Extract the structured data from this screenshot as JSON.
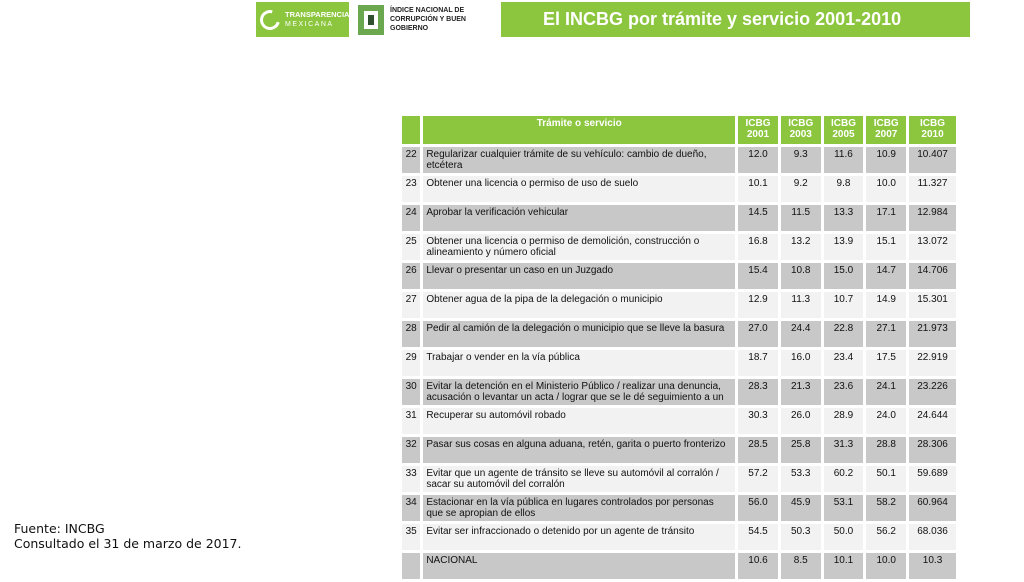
{
  "header": {
    "logo_tm": {
      "line1": "TRANSPARENCIA",
      "line2": "MEXICANA"
    },
    "logo_inc": {
      "line1": "ÍNDICE NACIONAL DE",
      "line2": "CORRUPCIÓN Y BUEN GOBIERNO"
    },
    "title": "El INCBG por trámite y servicio 2001-2010",
    "brand_color": "#8cc63f"
  },
  "table": {
    "columns": [
      "Trámite o servicio",
      "ICBG\n2001",
      "ICBG\n2003",
      "ICBG\n2005",
      "ICBG\n2007",
      "ICBG\n2010"
    ],
    "rows": [
      {
        "n": "22",
        "t": "Regularizar cualquier trámite de su vehículo: cambio de dueño, etcétera",
        "v": [
          "12.0",
          "9.3",
          "11.6",
          "10.9",
          "10.407"
        ]
      },
      {
        "n": "23",
        "t": "Obtener una licencia o permiso de uso de suelo",
        "v": [
          "10.1",
          "9.2",
          "9.8",
          "10.0",
          "11.327"
        ]
      },
      {
        "n": "24",
        "t": "Aprobar la verificación vehicular",
        "v": [
          "14.5",
          "11.5",
          "13.3",
          "17.1",
          "12.984"
        ]
      },
      {
        "n": "25",
        "t": "Obtener una licencia o permiso de demolición, construcción o alineamiento y número oficial",
        "v": [
          "16.8",
          "13.2",
          "13.9",
          "15.1",
          "13.072"
        ]
      },
      {
        "n": "26",
        "t": "Llevar o presentar un caso en un Juzgado",
        "v": [
          "15.4",
          "10.8",
          "15.0",
          "14.7",
          "14.706"
        ]
      },
      {
        "n": "27",
        "t": "Obtener agua de la pipa de la delegación o municipio",
        "v": [
          "12.9",
          "11.3",
          "10.7",
          "14.9",
          "15.301"
        ]
      },
      {
        "n": "28",
        "t": "Pedir al camión de la delegación o municipio que se lleve la basura",
        "v": [
          "27.0",
          "24.4",
          "22.8",
          "27.1",
          "21.973"
        ]
      },
      {
        "n": "29",
        "t": "Trabajar o vender en la vía pública",
        "v": [
          "18.7",
          "16.0",
          "23.4",
          "17.5",
          "22.919"
        ]
      },
      {
        "n": "30",
        "t": "Evitar la detención en el Ministerio Público / realizar una denuncia, acusación o levantar un acta / lograr que se le dé seguimiento a un",
        "v": [
          "28.3",
          "21.3",
          "23.6",
          "24.1",
          "23.226"
        ]
      },
      {
        "n": "31",
        "t": "Recuperar su automóvil robado",
        "v": [
          "30.3",
          "26.0",
          "28.9",
          "24.0",
          "24.644"
        ]
      },
      {
        "n": "32",
        "t": "Pasar sus cosas en alguna aduana, retén, garita o puerto fronterizo",
        "v": [
          "28.5",
          "25.8",
          "31.3",
          "28.8",
          "28.306"
        ]
      },
      {
        "n": "33",
        "t": "Evitar que un agente de tránsito se lleve su automóvil al corralón / sacar su automóvil del corralón",
        "v": [
          "57.2",
          "53.3",
          "60.2",
          "50.1",
          "59.689"
        ]
      },
      {
        "n": "34",
        "t": "Estacionar en la vía pública en lugares controlados por personas que se apropian de ellos",
        "v": [
          "56.0",
          "45.9",
          "53.1",
          "58.2",
          "60.964"
        ]
      },
      {
        "n": "35",
        "t": "Evitar ser infraccionado o detenido por un agente de tránsito",
        "v": [
          "54.5",
          "50.3",
          "50.0",
          "56.2",
          "68.036"
        ]
      },
      {
        "n": "",
        "t": "NACIONAL",
        "v": [
          "10.6",
          "8.5",
          "10.1",
          "10.0",
          "10.3"
        ]
      }
    ]
  },
  "footnote": {
    "source": "Fuente: INCBG",
    "consulted": "Consultado el 31 de marzo de 2017."
  }
}
